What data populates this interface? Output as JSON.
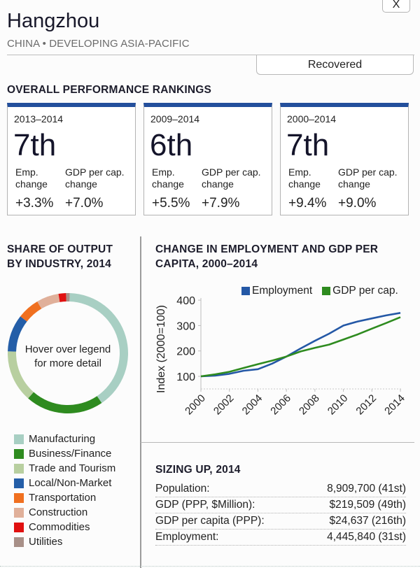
{
  "header": {
    "close_label": "X",
    "city": "Hangzhou",
    "region": "CHINA • DEVELOPING ASIA-PACIFIC",
    "status": "Recovered"
  },
  "rankings": {
    "title": "OVERALL PERFORMANCE RANKINGS",
    "accent_color": "#234f9c",
    "emp_label": "Emp.\nchange",
    "gdp_label": "GDP per cap.\nchange",
    "cards": [
      {
        "period": "2013–2014",
        "rank": "7th",
        "emp_change": "+3.3%",
        "gdp_change": "+7.0%"
      },
      {
        "period": "2009–2014",
        "rank": "6th",
        "emp_change": "+5.5%",
        "gdp_change": "+7.9%"
      },
      {
        "period": "2000–2014",
        "rank": "7th",
        "emp_change": "+9.4%",
        "gdp_change": "+9.0%"
      }
    ]
  },
  "output_share": {
    "title_line1": "SHARE OF OUTPUT",
    "title_line2": "BY INDUSTRY, 2014",
    "center_line1": "Hover over legend",
    "center_line2": "for more detail",
    "legend": [
      {
        "label": "Manufacturing",
        "color": "#a8cfc3"
      },
      {
        "label": "Business/Finance",
        "color": "#2e8b1f"
      },
      {
        "label": "Trade and Tourism",
        "color": "#b8cfa0"
      },
      {
        "label": "Local/Non-Market",
        "color": "#245ea8"
      },
      {
        "label": "Transportation",
        "color": "#f07020"
      },
      {
        "label": "Construction",
        "color": "#e0b09a"
      },
      {
        "label": "Commodities",
        "color": "#e01010"
      },
      {
        "label": "Utilities",
        "color": "#a89088"
      }
    ]
  },
  "line_chart": {
    "title_line1": "CHANGE IN EMPLOYMENT AND GDP PER",
    "title_line2": "CAPITA, 2000–2014"
  },
  "sizing": {
    "title": "SIZING UP, 2014",
    "rows": [
      {
        "label": "Population:",
        "value": "8,909,700 (41st)"
      },
      {
        "label": "GDP (PPP, $Million):",
        "value": "$219,509 (49th)"
      },
      {
        "label": "GDP per capita (PPP):",
        "value": "$24,637 (216th)"
      },
      {
        "label": "Employment:",
        "value": "4,445,840 (31st)"
      }
    ]
  },
  "chart_data": [
    {
      "type": "pie",
      "title": "SHARE OF OUTPUT BY INDUSTRY, 2014",
      "donut": true,
      "categories": [
        "Manufacturing",
        "Business/Finance",
        "Trade and Tourism",
        "Local/Non-Market",
        "Transportation",
        "Construction",
        "Commodities",
        "Utilities"
      ],
      "values": [
        40,
        21,
        14,
        10,
        6,
        6,
        2,
        1
      ],
      "unit": "% of output (estimated from arc lengths)",
      "colors": [
        "#a8cfc3",
        "#2e8b1f",
        "#b8cfa0",
        "#245ea8",
        "#f07020",
        "#e0b09a",
        "#e01010",
        "#a89088"
      ],
      "legend": "bottom"
    },
    {
      "type": "line",
      "title": "CHANGE IN EMPLOYMENT AND GDP PER CAPITA, 2000–2014",
      "xlabel": "",
      "ylabel": "Index (2000=100)",
      "x": [
        2000,
        2001,
        2002,
        2003,
        2004,
        2005,
        2006,
        2007,
        2008,
        2009,
        2010,
        2011,
        2012,
        2013,
        2014
      ],
      "xticks": [
        "2000",
        "2002",
        "2004",
        "2006",
        "2008",
        "2010",
        "2012",
        "2014"
      ],
      "yticks": [
        "100",
        "200",
        "300",
        "400"
      ],
      "ylim": [
        50,
        400
      ],
      "grid": false,
      "legend": "top-right",
      "series": [
        {
          "name": "Employment",
          "color": "#2458a6",
          "values": [
            100,
            103,
            110,
            122,
            128,
            150,
            178,
            210,
            240,
            268,
            300,
            316,
            328,
            340,
            350
          ]
        },
        {
          "name": "GDP per cap.",
          "color": "#2e8b1f",
          "values": [
            100,
            108,
            118,
            133,
            148,
            162,
            178,
            198,
            212,
            225,
            245,
            265,
            288,
            310,
            333
          ]
        }
      ]
    }
  ]
}
